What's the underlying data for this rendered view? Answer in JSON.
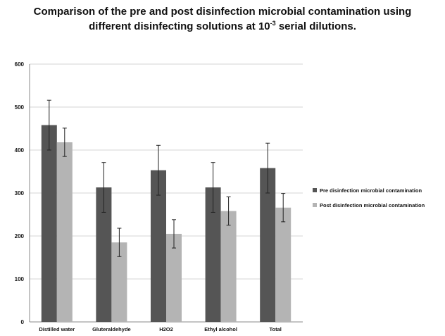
{
  "chart_data": {
    "type": "bar",
    "title_main": "Comparison of the pre and post disinfection microbial contamination using different disinfecting solutions at 10",
    "title_exponent": "-3",
    "title_tail": " serial dilutions.",
    "xlabel": "",
    "ylabel": "",
    "categories": [
      "Distilled water",
      "Gluteraldehyde",
      "H2O2",
      "Ethyl alcohol",
      "Total"
    ],
    "series": [
      {
        "name": "Pre disinfection microbial contamination",
        "color": "#555555",
        "values": [
          458,
          313,
          353,
          313,
          358
        ],
        "error": [
          58,
          58,
          58,
          58,
          58
        ]
      },
      {
        "name": "Post disinfection microbial contamination",
        "color": "#b4b4b4",
        "values": [
          418,
          185,
          205,
          258,
          266
        ],
        "error": [
          33,
          33,
          33,
          33,
          33
        ]
      }
    ],
    "ylim": [
      0,
      600
    ],
    "yticks": [
      0,
      100,
      200,
      300,
      400,
      500,
      600
    ],
    "grid": true,
    "legend_position": "right",
    "error_bars": true
  }
}
